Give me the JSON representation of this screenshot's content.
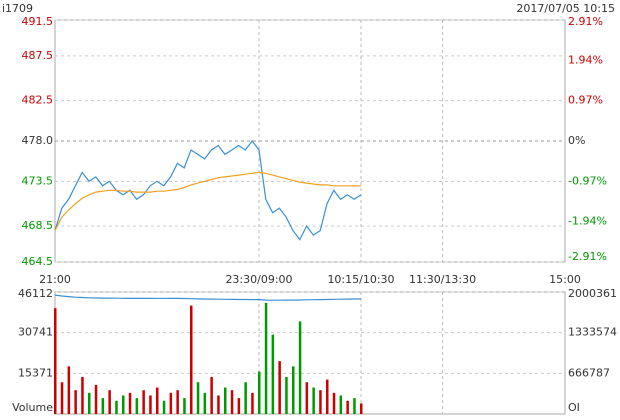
{
  "header": {
    "symbol": "i1709",
    "datetime": "2017/07/05 10:15"
  },
  "chart_data": [
    {
      "type": "line",
      "x": [
        0,
        5,
        10,
        15,
        20,
        25,
        30,
        35,
        40,
        45,
        50,
        55,
        60,
        65,
        70,
        75,
        80,
        85,
        90,
        95,
        100,
        105,
        110,
        115,
        120,
        125,
        130,
        135,
        140,
        145,
        150,
        155,
        160,
        165,
        170,
        175,
        180,
        185,
        190,
        195,
        200,
        205,
        210,
        215,
        220,
        225
      ],
      "series": [
        {
          "color": "#3a8fd6",
          "values": [
            468.0,
            470.5,
            471.5,
            473.0,
            474.5,
            473.5,
            474.0,
            473.0,
            473.5,
            472.5,
            472.0,
            472.5,
            471.5,
            472.0,
            473.0,
            473.5,
            473.0,
            474.0,
            475.5,
            475.0,
            477.0,
            476.5,
            476.0,
            477.0,
            477.5,
            476.5,
            477.0,
            477.5,
            477.0,
            478.0,
            477.0,
            471.5,
            470.0,
            470.5,
            469.5,
            468.0,
            467.0,
            468.5,
            467.5,
            468.0,
            471.0,
            472.5,
            471.5,
            472.0,
            471.5,
            472.0
          ]
        },
        {
          "color": "#f0a020",
          "values": [
            468.0,
            469.5,
            470.3,
            471.0,
            471.6,
            472.0,
            472.3,
            472.4,
            472.5,
            472.5,
            472.4,
            472.4,
            472.3,
            472.3,
            472.3,
            472.4,
            472.4,
            472.5,
            472.6,
            472.8,
            473.1,
            473.3,
            473.5,
            473.7,
            473.9,
            474.0,
            474.1,
            474.2,
            474.3,
            474.4,
            474.5,
            474.4,
            474.2,
            474.0,
            473.8,
            473.6,
            473.4,
            473.3,
            473.2,
            473.1,
            473.1,
            473.0,
            473.0,
            473.0,
            473.0,
            473.0
          ]
        }
      ],
      "xlim": [
        0,
        375
      ],
      "xticks": [
        {
          "value": 0,
          "label": "21:00"
        },
        {
          "value": 150,
          "label": "23:30/09:00"
        },
        {
          "value": 225,
          "label": "10:15/10:30"
        },
        {
          "value": 285,
          "label": "11:30/13:30"
        },
        {
          "value": 375,
          "label": "15:00"
        }
      ],
      "ylim": [
        464.5,
        491.5
      ],
      "yticks": [
        {
          "value": 491.5,
          "label": "491.5"
        },
        {
          "value": 487.5,
          "label": "487.5"
        },
        {
          "value": 482.5,
          "label": "482.5"
        },
        {
          "value": 478.0,
          "label": "478.0"
        },
        {
          "value": 473.5,
          "label": "473.5"
        },
        {
          "value": 468.5,
          "label": "468.5"
        },
        {
          "value": 464.5,
          "label": "464.5"
        }
      ],
      "y2lim": [
        -2.91,
        2.91
      ],
      "y2ticks": [
        {
          "value": 2.91,
          "label": "2.91%"
        },
        {
          "value": 1.94,
          "label": "1.94%"
        },
        {
          "value": 0.97,
          "label": "0.97%"
        },
        {
          "value": 0,
          "label": "0%"
        },
        {
          "value": -0.97,
          "label": "-0.97%"
        },
        {
          "value": -1.94,
          "label": "-1.94%"
        },
        {
          "value": -2.91,
          "label": "-2.91%"
        }
      ],
      "grid": true
    },
    {
      "type": "bar",
      "x": [
        0,
        5,
        10,
        15,
        20,
        25,
        30,
        35,
        40,
        45,
        50,
        55,
        60,
        65,
        70,
        75,
        80,
        85,
        90,
        95,
        100,
        105,
        110,
        115,
        120,
        125,
        130,
        135,
        140,
        145,
        150,
        155,
        160,
        165,
        170,
        175,
        180,
        185,
        190,
        195,
        200,
        205,
        210,
        215,
        220,
        225
      ],
      "ylabel": "Volume",
      "y2label": "OI",
      "series": [
        {
          "color": "#cc0000",
          "values": [
            40000,
            12000,
            18000,
            9000,
            14000,
            8000,
            11000,
            6000,
            9000,
            5000,
            7000,
            8000,
            6000,
            9000,
            7000,
            10000,
            5000,
            8000,
            9000,
            6000,
            41000,
            12000,
            8000,
            14000,
            7000,
            10000,
            9000,
            6000,
            12000,
            8000,
            16000,
            42000,
            30000,
            20000,
            14000,
            18000,
            35000,
            12000,
            10000,
            9000,
            13000,
            8000,
            7000,
            5000,
            6000,
            4000
          ]
        },
        {
          "axis": "y2",
          "color": "#3a8fd6",
          "values": [
            1950000,
            1935000,
            1925000,
            1915000,
            1910000,
            1905000,
            1902000,
            1900000,
            1900000,
            1898000,
            1897000,
            1896000,
            1895000,
            1895000,
            1896000,
            1897000,
            1897000,
            1896000,
            1895000,
            1894000,
            1890000,
            1888000,
            1886000,
            1884000,
            1882000,
            1880000,
            1879000,
            1878000,
            1877000,
            1876000,
            1875000,
            1868000,
            1866000,
            1866000,
            1867000,
            1868000,
            1870000,
            1872000,
            1874000,
            1876000,
            1878000,
            1880000,
            1882000,
            1884000,
            1886000,
            1887000
          ]
        }
      ],
      "xlim": [
        0,
        375
      ],
      "ylim": [
        0,
        46112
      ],
      "yticks": [
        15371,
        30741,
        46112
      ],
      "y2lim": [
        0,
        2000361
      ],
      "y2ticks": [
        666787,
        1333574,
        2000361
      ],
      "grid": true
    }
  ]
}
